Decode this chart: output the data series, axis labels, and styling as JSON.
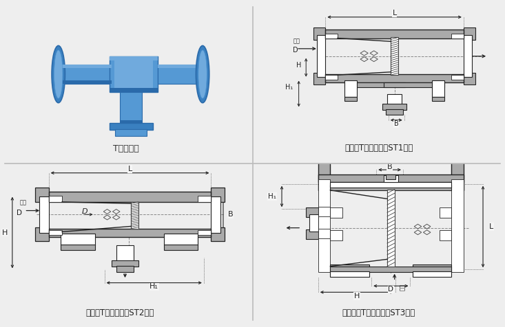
{
  "bg_color": "#eeeeee",
  "panel_bg": "#f5f5f5",
  "line_color": "#222222",
  "gray_fill": "#aaaaaa",
  "light_gray": "#cccccc",
  "white_fill": "#ffffff",
  "divider_color": "#bbbbbb",
  "labels": {
    "top_left": "T型过滤器",
    "top_right": "直通式T型过滤器（ST1型）",
    "bottom_left": "折流式T型过滤器（ST2型）",
    "bottom_right": "反折流式T型过滤器（ST3型）"
  }
}
